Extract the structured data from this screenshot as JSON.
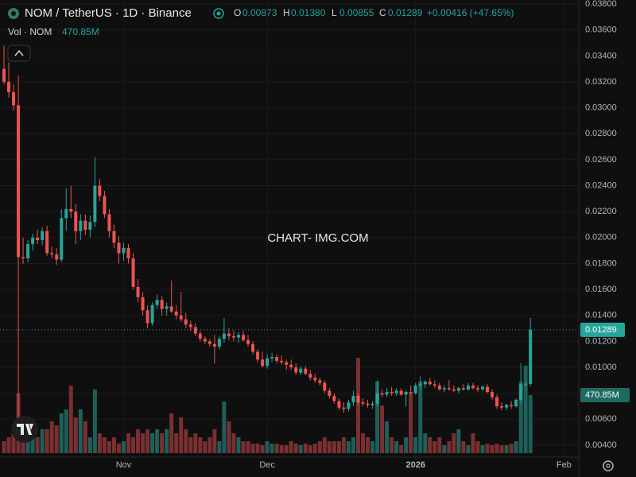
{
  "chart_data": {
    "type": "candlestick",
    "title": "NOM / TetherUS · 1D · Binance",
    "header": {
      "open_label": "O",
      "open": "0.00873",
      "high_label": "H",
      "high": "0.01380",
      "low_label": "L",
      "low": "0.00855",
      "close_label": "C",
      "close": "0.01289",
      "change": "+0.00416 (+47.65%)"
    },
    "volume_title": "Vol · NOM",
    "volume_last_label": "470.85M",
    "watermark": "CHART- IMG.COM",
    "up_color": "#26a69a",
    "down_color": "#ef5350",
    "up_volume_color": "#1e5f59",
    "down_volume_color": "#7a2f31",
    "grid": true,
    "xlim": [
      -0.83,
      120.1
    ],
    "xticks": [
      {
        "value": 25,
        "label": "Nov"
      },
      {
        "value": 55,
        "label": "Dec"
      },
      {
        "value": 86,
        "label": "2026"
      },
      {
        "value": 117,
        "label": "Feb"
      }
    ],
    "ylim": [
      0.00308,
      0.03831
    ],
    "yticks": [
      {
        "value": 0.004,
        "label": "0.00400"
      },
      {
        "value": 0.006,
        "label": "0.00600"
      },
      {
        "value": 0.008,
        "label": "0.00800"
      },
      {
        "value": 0.01,
        "label": "0.01000"
      },
      {
        "value": 0.012,
        "label": "0.01200"
      },
      {
        "value": 0.014,
        "label": "0.01400"
      },
      {
        "value": 0.016,
        "label": "0.01600"
      },
      {
        "value": 0.018,
        "label": "0.01800"
      },
      {
        "value": 0.02,
        "label": "0.02000"
      },
      {
        "value": 0.022,
        "label": "0.02200"
      },
      {
        "value": 0.024,
        "label": "0.02400"
      },
      {
        "value": 0.026,
        "label": "0.02600"
      },
      {
        "value": 0.028,
        "label": "0.02800"
      },
      {
        "value": 0.03,
        "label": "0.03000"
      },
      {
        "value": 0.032,
        "label": "0.03200"
      },
      {
        "value": 0.034,
        "label": "0.03400"
      },
      {
        "value": 0.036,
        "label": "0.03600"
      },
      {
        "value": 0.038,
        "label": "0.03800"
      }
    ],
    "volume_lim": [
      0,
      2500000000
    ],
    "candles": [
      [
        0.033,
        0.0348,
        0.0318,
        0.032
      ],
      [
        0.032,
        0.0335,
        0.0308,
        0.0312
      ],
      [
        0.0312,
        0.0318,
        0.0298,
        0.0302
      ],
      [
        0.0302,
        0.0325,
        0.0061,
        0.0185
      ],
      [
        0.0185,
        0.02,
        0.018,
        0.0184
      ],
      [
        0.0184,
        0.0198,
        0.0181,
        0.0195
      ],
      [
        0.0195,
        0.0203,
        0.019,
        0.02
      ],
      [
        0.02,
        0.0206,
        0.0195,
        0.0198
      ],
      [
        0.0198,
        0.0208,
        0.0194,
        0.0205
      ],
      [
        0.0205,
        0.0209,
        0.0186,
        0.0188
      ],
      [
        0.0188,
        0.0193,
        0.0184,
        0.0187
      ],
      [
        0.0187,
        0.0192,
        0.0179,
        0.0183
      ],
      [
        0.0183,
        0.0222,
        0.0181,
        0.0215
      ],
      [
        0.0215,
        0.0238,
        0.0205,
        0.0222
      ],
      [
        0.0222,
        0.024,
        0.0215,
        0.022
      ],
      [
        0.022,
        0.0226,
        0.0195,
        0.0205
      ],
      [
        0.0205,
        0.0218,
        0.0198,
        0.0213
      ],
      [
        0.0213,
        0.0218,
        0.0202,
        0.0206
      ],
      [
        0.0206,
        0.0217,
        0.02,
        0.0212
      ],
      [
        0.0212,
        0.0262,
        0.0208,
        0.024
      ],
      [
        0.024,
        0.0245,
        0.0228,
        0.0232
      ],
      [
        0.0232,
        0.0236,
        0.0215,
        0.0218
      ],
      [
        0.0218,
        0.0222,
        0.02,
        0.0205
      ],
      [
        0.0205,
        0.021,
        0.0192,
        0.0196
      ],
      [
        0.0196,
        0.0201,
        0.018,
        0.0188
      ],
      [
        0.0188,
        0.0196,
        0.0182,
        0.0192
      ],
      [
        0.0192,
        0.0195,
        0.018,
        0.0184
      ],
      [
        0.0184,
        0.0188,
        0.016,
        0.0162
      ],
      [
        0.0162,
        0.0168,
        0.015,
        0.0154
      ],
      [
        0.0154,
        0.0158,
        0.014,
        0.0144
      ],
      [
        0.0144,
        0.0148,
        0.013,
        0.0134
      ],
      [
        0.0134,
        0.015,
        0.0132,
        0.0148
      ],
      [
        0.0148,
        0.0156,
        0.0145,
        0.0152
      ],
      [
        0.0152,
        0.0155,
        0.014,
        0.0145
      ],
      [
        0.0145,
        0.015,
        0.014,
        0.0147
      ],
      [
        0.0147,
        0.0167,
        0.0142,
        0.0143
      ],
      [
        0.0143,
        0.0148,
        0.0137,
        0.014
      ],
      [
        0.014,
        0.0158,
        0.0135,
        0.0137
      ],
      [
        0.0137,
        0.0142,
        0.013,
        0.0133
      ],
      [
        0.0133,
        0.0136,
        0.0128,
        0.0131
      ],
      [
        0.0131,
        0.0134,
        0.0124,
        0.0126
      ],
      [
        0.0126,
        0.0128,
        0.012,
        0.0122
      ],
      [
        0.0122,
        0.0124,
        0.0118,
        0.012
      ],
      [
        0.012,
        0.0122,
        0.0116,
        0.0118
      ],
      [
        0.0118,
        0.0125,
        0.0103,
        0.0116
      ],
      [
        0.0116,
        0.0124,
        0.0114,
        0.0122
      ],
      [
        0.0122,
        0.0138,
        0.0119,
        0.0126
      ],
      [
        0.0126,
        0.013,
        0.0121,
        0.0124
      ],
      [
        0.0124,
        0.0128,
        0.012,
        0.0123
      ],
      [
        0.0123,
        0.0127,
        0.0119,
        0.0125
      ],
      [
        0.0125,
        0.0128,
        0.012,
        0.0121
      ],
      [
        0.0121,
        0.0125,
        0.0116,
        0.0118
      ],
      [
        0.0118,
        0.012,
        0.011,
        0.0112
      ],
      [
        0.0112,
        0.0114,
        0.0104,
        0.0106
      ],
      [
        0.0106,
        0.0112,
        0.01,
        0.0101
      ],
      [
        0.0101,
        0.011,
        0.0099,
        0.0107
      ],
      [
        0.0107,
        0.0111,
        0.0104,
        0.0108
      ],
      [
        0.0108,
        0.011,
        0.0103,
        0.0105
      ],
      [
        0.0105,
        0.0109,
        0.0102,
        0.0104
      ],
      [
        0.0104,
        0.0106,
        0.0098,
        0.0102
      ],
      [
        0.0102,
        0.0106,
        0.0098,
        0.01
      ],
      [
        0.01,
        0.0103,
        0.0094,
        0.0096
      ],
      [
        0.0096,
        0.0101,
        0.0094,
        0.0099
      ],
      [
        0.0099,
        0.0101,
        0.0094,
        0.0095
      ],
      [
        0.0095,
        0.0098,
        0.009,
        0.0092
      ],
      [
        0.0092,
        0.0095,
        0.0088,
        0.009
      ],
      [
        0.009,
        0.0092,
        0.0086,
        0.0088
      ],
      [
        0.0088,
        0.009,
        0.008,
        0.0082
      ],
      [
        0.0082,
        0.0084,
        0.0076,
        0.0078
      ],
      [
        0.0078,
        0.008,
        0.0072,
        0.0074
      ],
      [
        0.0074,
        0.0076,
        0.0067,
        0.0069
      ],
      [
        0.0069,
        0.0073,
        0.0065,
        0.0068
      ],
      [
        0.0068,
        0.0075,
        0.0066,
        0.0073
      ],
      [
        0.0073,
        0.0082,
        0.007,
        0.0078
      ],
      [
        0.0078,
        0.008,
        0.0071,
        0.0073
      ],
      [
        0.0073,
        0.0076,
        0.007,
        0.0072
      ],
      [
        0.0072,
        0.0075,
        0.0069,
        0.0071
      ],
      [
        0.0071,
        0.0074,
        0.0068,
        0.0072
      ],
      [
        0.0072,
        0.009,
        0.007,
        0.008
      ],
      [
        0.008,
        0.0083,
        0.0077,
        0.0079
      ],
      [
        0.0079,
        0.0084,
        0.0077,
        0.0081
      ],
      [
        0.0081,
        0.0085,
        0.0078,
        0.008
      ],
      [
        0.008,
        0.0084,
        0.0078,
        0.0082
      ],
      [
        0.0082,
        0.0084,
        0.0078,
        0.0079
      ],
      [
        0.0079,
        0.0082,
        0.007,
        0.0081
      ],
      [
        0.0081,
        0.0086,
        0.0079,
        0.008
      ],
      [
        0.008,
        0.0088,
        0.0079,
        0.0086
      ],
      [
        0.0086,
        0.0093,
        0.0084,
        0.0087
      ],
      [
        0.0087,
        0.009,
        0.0084,
        0.0089
      ],
      [
        0.0089,
        0.0092,
        0.0086,
        0.0087
      ],
      [
        0.0087,
        0.009,
        0.0084,
        0.0086
      ],
      [
        0.0086,
        0.0088,
        0.0082,
        0.0083
      ],
      [
        0.0083,
        0.0086,
        0.0081,
        0.0084
      ],
      [
        0.0084,
        0.009,
        0.0082,
        0.0083
      ],
      [
        0.0083,
        0.0086,
        0.0081,
        0.0082
      ],
      [
        0.0082,
        0.0085,
        0.008,
        0.0084
      ],
      [
        0.0084,
        0.0087,
        0.0082,
        0.0083
      ],
      [
        0.0083,
        0.0088,
        0.0082,
        0.0086
      ],
      [
        0.0086,
        0.0088,
        0.0083,
        0.0084
      ],
      [
        0.0084,
        0.0086,
        0.0081,
        0.0083
      ],
      [
        0.0083,
        0.0086,
        0.0082,
        0.0085
      ],
      [
        0.0085,
        0.0087,
        0.008,
        0.0081
      ],
      [
        0.0081,
        0.0083,
        0.0075,
        0.0077
      ],
      [
        0.0077,
        0.0079,
        0.0068,
        0.007
      ],
      [
        0.007,
        0.0073,
        0.0067,
        0.0069
      ],
      [
        0.0069,
        0.0072,
        0.0067,
        0.0071
      ],
      [
        0.0071,
        0.0074,
        0.0068,
        0.007
      ],
      [
        0.007,
        0.0076,
        0.0069,
        0.0075
      ],
      [
        0.0075,
        0.0103,
        0.0072,
        0.0087
      ],
      [
        0.0087,
        0.0089,
        0.0085,
        0.00873
      ],
      [
        0.00873,
        0.0138,
        0.00855,
        0.01289
      ]
    ],
    "volume": [
      97000000.0,
      129000000.0,
      194000000.0,
      484000000.0,
      258000000.0,
      97000000.0,
      194000000.0,
      129000000.0,
      194000000.0,
      194000000.0,
      258000000.0,
      226000000.0,
      323000000.0,
      355000000.0,
      548000000.0,
      290000000.0,
      355000000.0,
      258000000.0,
      129000000.0,
      516000000.0,
      161000000.0,
      129000000.0,
      97000000.0,
      129000000.0,
      77000000.0,
      97000000.0,
      161000000.0,
      129000000.0,
      194000000.0,
      161000000.0,
      194000000.0,
      161000000.0,
      194000000.0,
      161000000.0,
      194000000.0,
      323000000.0,
      161000000.0,
      290000000.0,
      194000000.0,
      129000000.0,
      161000000.0,
      129000000.0,
      97000000.0,
      129000000.0,
      194000000.0,
      97000000.0,
      419000000.0,
      258000000.0,
      161000000.0,
      129000000.0,
      97000000.0,
      97000000.0,
      77000000.0,
      77000000.0,
      65000000.0,
      97000000.0,
      77000000.0,
      77000000.0,
      65000000.0,
      65000000.0,
      97000000.0,
      77000000.0,
      65000000.0,
      77000000.0,
      65000000.0,
      77000000.0,
      97000000.0,
      129000000.0,
      97000000.0,
      97000000.0,
      97000000.0,
      129000000.0,
      97000000.0,
      129000000.0,
      774000000.0,
      161000000.0,
      129000000.0,
      97000000.0,
      581000000.0,
      387000000.0,
      258000000.0,
      129000000.0,
      97000000.0,
      65000000.0,
      129000000.0,
      484000000.0,
      129000000.0,
      581000000.0,
      161000000.0,
      129000000.0,
      97000000.0,
      129000000.0,
      65000000.0,
      97000000.0,
      161000000.0,
      194000000.0,
      97000000.0,
      65000000.0,
      161000000.0,
      97000000.0,
      65000000.0,
      77000000.0,
      65000000.0,
      77000000.0,
      65000000.0,
      65000000.0,
      77000000.0,
      97000000.0,
      581000000.0,
      710000000.0,
      470850000
    ]
  }
}
